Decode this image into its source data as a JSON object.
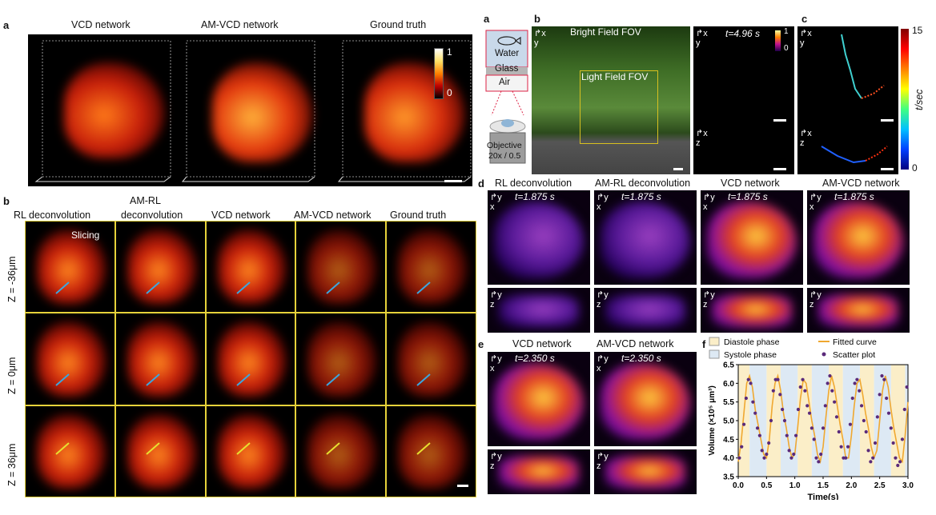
{
  "left": {
    "panel_a_label": "a",
    "panel_b_label": "b",
    "top_titles": [
      "VCD network",
      "AM-VCD network",
      "Ground truth"
    ],
    "colorbar_ticks": [
      "1",
      "0"
    ],
    "grid_col_titles": [
      "RL deconvolution",
      "AM-RL deconvolution",
      "VCD network",
      "AM-VCD network",
      "Ground truth"
    ],
    "slicing_label": "Slicing",
    "row_labels": [
      "Z = -36μm",
      "Z = 0μm",
      "Z = 36μm"
    ]
  },
  "right": {
    "a_label": "a",
    "b_label": "b",
    "c_label": "c",
    "d_label": "d",
    "e_label": "e",
    "f_label": "f",
    "setup": {
      "water": "Water",
      "glass": "Glass",
      "air": "Air",
      "objective_line1": "Objective",
      "objective_line2": "20x / 0.5"
    },
    "b_panel": {
      "bright_field": "Bright Field FOV",
      "light_field": "Light Field FOV",
      "time": "t=4.96 s",
      "cbar_top": "1",
      "cbar_bottom": "0"
    },
    "c_panel": {
      "cbar_top": "15",
      "cbar_bottom": "0",
      "cbar_label": "t/sec"
    },
    "d_titles": [
      "RL deconvolution",
      "AM-RL deconvolution",
      "VCD network",
      "AM-VCD network"
    ],
    "d_time": "t=1.875 s",
    "e_titles": [
      "VCD network",
      "AM-VCD network"
    ],
    "e_time": "t=2.350 s",
    "axes": {
      "x": "x",
      "y": "y",
      "z": "z"
    }
  },
  "chart_data": {
    "type": "line",
    "xlabel": "Time(s)",
    "ylabel": "Volume (×10⁵ μm³)",
    "xlim": [
      0.0,
      3.0
    ],
    "ylim": [
      3.5,
      6.5
    ],
    "xticks": [
      "0.0",
      "0.5",
      "1.0",
      "1.5",
      "2.0",
      "2.5",
      "3.0"
    ],
    "yticks": [
      "3.5",
      "4.0",
      "4.5",
      "5.0",
      "5.5",
      "6.0",
      "6.5"
    ],
    "legend": [
      "Diastole phase",
      "Systole phase",
      "Fitted curve",
      "Scatter plot"
    ],
    "diastole_intervals": [
      [
        0.0,
        0.2
      ],
      [
        0.5,
        0.75
      ],
      [
        1.05,
        1.3
      ],
      [
        1.6,
        1.85
      ],
      [
        2.15,
        2.4
      ],
      [
        2.7,
        2.95
      ]
    ],
    "systole_intervals": [
      [
        0.2,
        0.5
      ],
      [
        0.75,
        1.05
      ],
      [
        1.3,
        1.6
      ],
      [
        1.85,
        2.15
      ],
      [
        2.4,
        2.7
      ],
      [
        2.95,
        3.0
      ]
    ],
    "series": [
      {
        "name": "Fitted curve",
        "x": [
          0.0,
          0.05,
          0.1,
          0.15,
          0.2,
          0.25,
          0.3,
          0.35,
          0.4,
          0.45,
          0.5,
          0.55,
          0.6,
          0.65,
          0.7,
          0.75,
          0.8,
          0.85,
          0.9,
          0.95,
          1.0,
          1.05,
          1.1,
          1.15,
          1.2,
          1.25,
          1.3,
          1.35,
          1.4,
          1.45,
          1.5,
          1.55,
          1.6,
          1.65,
          1.7,
          1.75,
          1.8,
          1.85,
          1.9,
          1.95,
          2.0,
          2.05,
          2.1,
          2.15,
          2.2,
          2.25,
          2.3,
          2.35,
          2.4,
          2.45,
          2.5,
          2.55,
          2.6,
          2.65,
          2.7,
          2.75,
          2.8,
          2.85,
          2.9,
          2.95,
          3.0
        ],
        "y": [
          3.9,
          4.4,
          5.2,
          6.0,
          6.2,
          5.9,
          5.3,
          4.9,
          4.5,
          4.1,
          4.0,
          4.5,
          5.4,
          6.0,
          6.2,
          5.8,
          5.2,
          4.8,
          4.3,
          4.0,
          4.1,
          4.8,
          5.6,
          6.1,
          6.0,
          5.5,
          5.0,
          4.6,
          4.1,
          3.9,
          4.3,
          5.1,
          5.8,
          6.2,
          5.9,
          5.4,
          4.9,
          4.5,
          4.0,
          4.0,
          4.6,
          5.4,
          6.0,
          6.1,
          5.7,
          5.2,
          4.8,
          4.3,
          4.0,
          4.2,
          5.0,
          5.8,
          6.2,
          5.9,
          5.3,
          4.8,
          4.4,
          4.0,
          3.9,
          4.6,
          5.5
        ]
      },
      {
        "name": "Scatter plot",
        "x": [
          0.02,
          0.06,
          0.1,
          0.14,
          0.18,
          0.22,
          0.26,
          0.3,
          0.34,
          0.38,
          0.42,
          0.46,
          0.5,
          0.54,
          0.58,
          0.62,
          0.66,
          0.7,
          0.74,
          0.78,
          0.82,
          0.86,
          0.9,
          0.94,
          0.98,
          1.02,
          1.06,
          1.1,
          1.14,
          1.18,
          1.22,
          1.26,
          1.3,
          1.34,
          1.38,
          1.42,
          1.46,
          1.5,
          1.54,
          1.58,
          1.62,
          1.66,
          1.7,
          1.74,
          1.78,
          1.82,
          1.86,
          1.9,
          1.94,
          1.98,
          2.02,
          2.06,
          2.1,
          2.14,
          2.18,
          2.22,
          2.26,
          2.3,
          2.34,
          2.38,
          2.42,
          2.46,
          2.5,
          2.54,
          2.58,
          2.62,
          2.66,
          2.7,
          2.74,
          2.78,
          2.82,
          2.86,
          2.9,
          2.94,
          2.98
        ],
        "y": [
          4.0,
          4.3,
          4.9,
          5.6,
          6.1,
          6.0,
          5.5,
          5.2,
          4.8,
          4.6,
          4.2,
          4.0,
          4.1,
          4.4,
          5.0,
          5.8,
          6.1,
          6.1,
          5.7,
          5.3,
          5.0,
          4.6,
          4.2,
          4.0,
          4.1,
          4.6,
          5.3,
          5.9,
          6.1,
          5.8,
          5.4,
          5.2,
          4.8,
          4.5,
          4.0,
          3.9,
          4.1,
          4.8,
          5.4,
          6.0,
          6.2,
          5.8,
          5.5,
          5.1,
          4.7,
          4.3,
          4.0,
          4.0,
          4.3,
          4.9,
          5.6,
          6.0,
          6.1,
          5.8,
          5.4,
          5.0,
          4.7,
          4.2,
          3.9,
          4.0,
          4.4,
          5.1,
          5.7,
          6.2,
          6.1,
          5.6,
          5.2,
          4.8,
          4.4,
          4.0,
          3.8,
          3.9,
          4.5,
          5.3,
          5.9
        ]
      }
    ]
  }
}
